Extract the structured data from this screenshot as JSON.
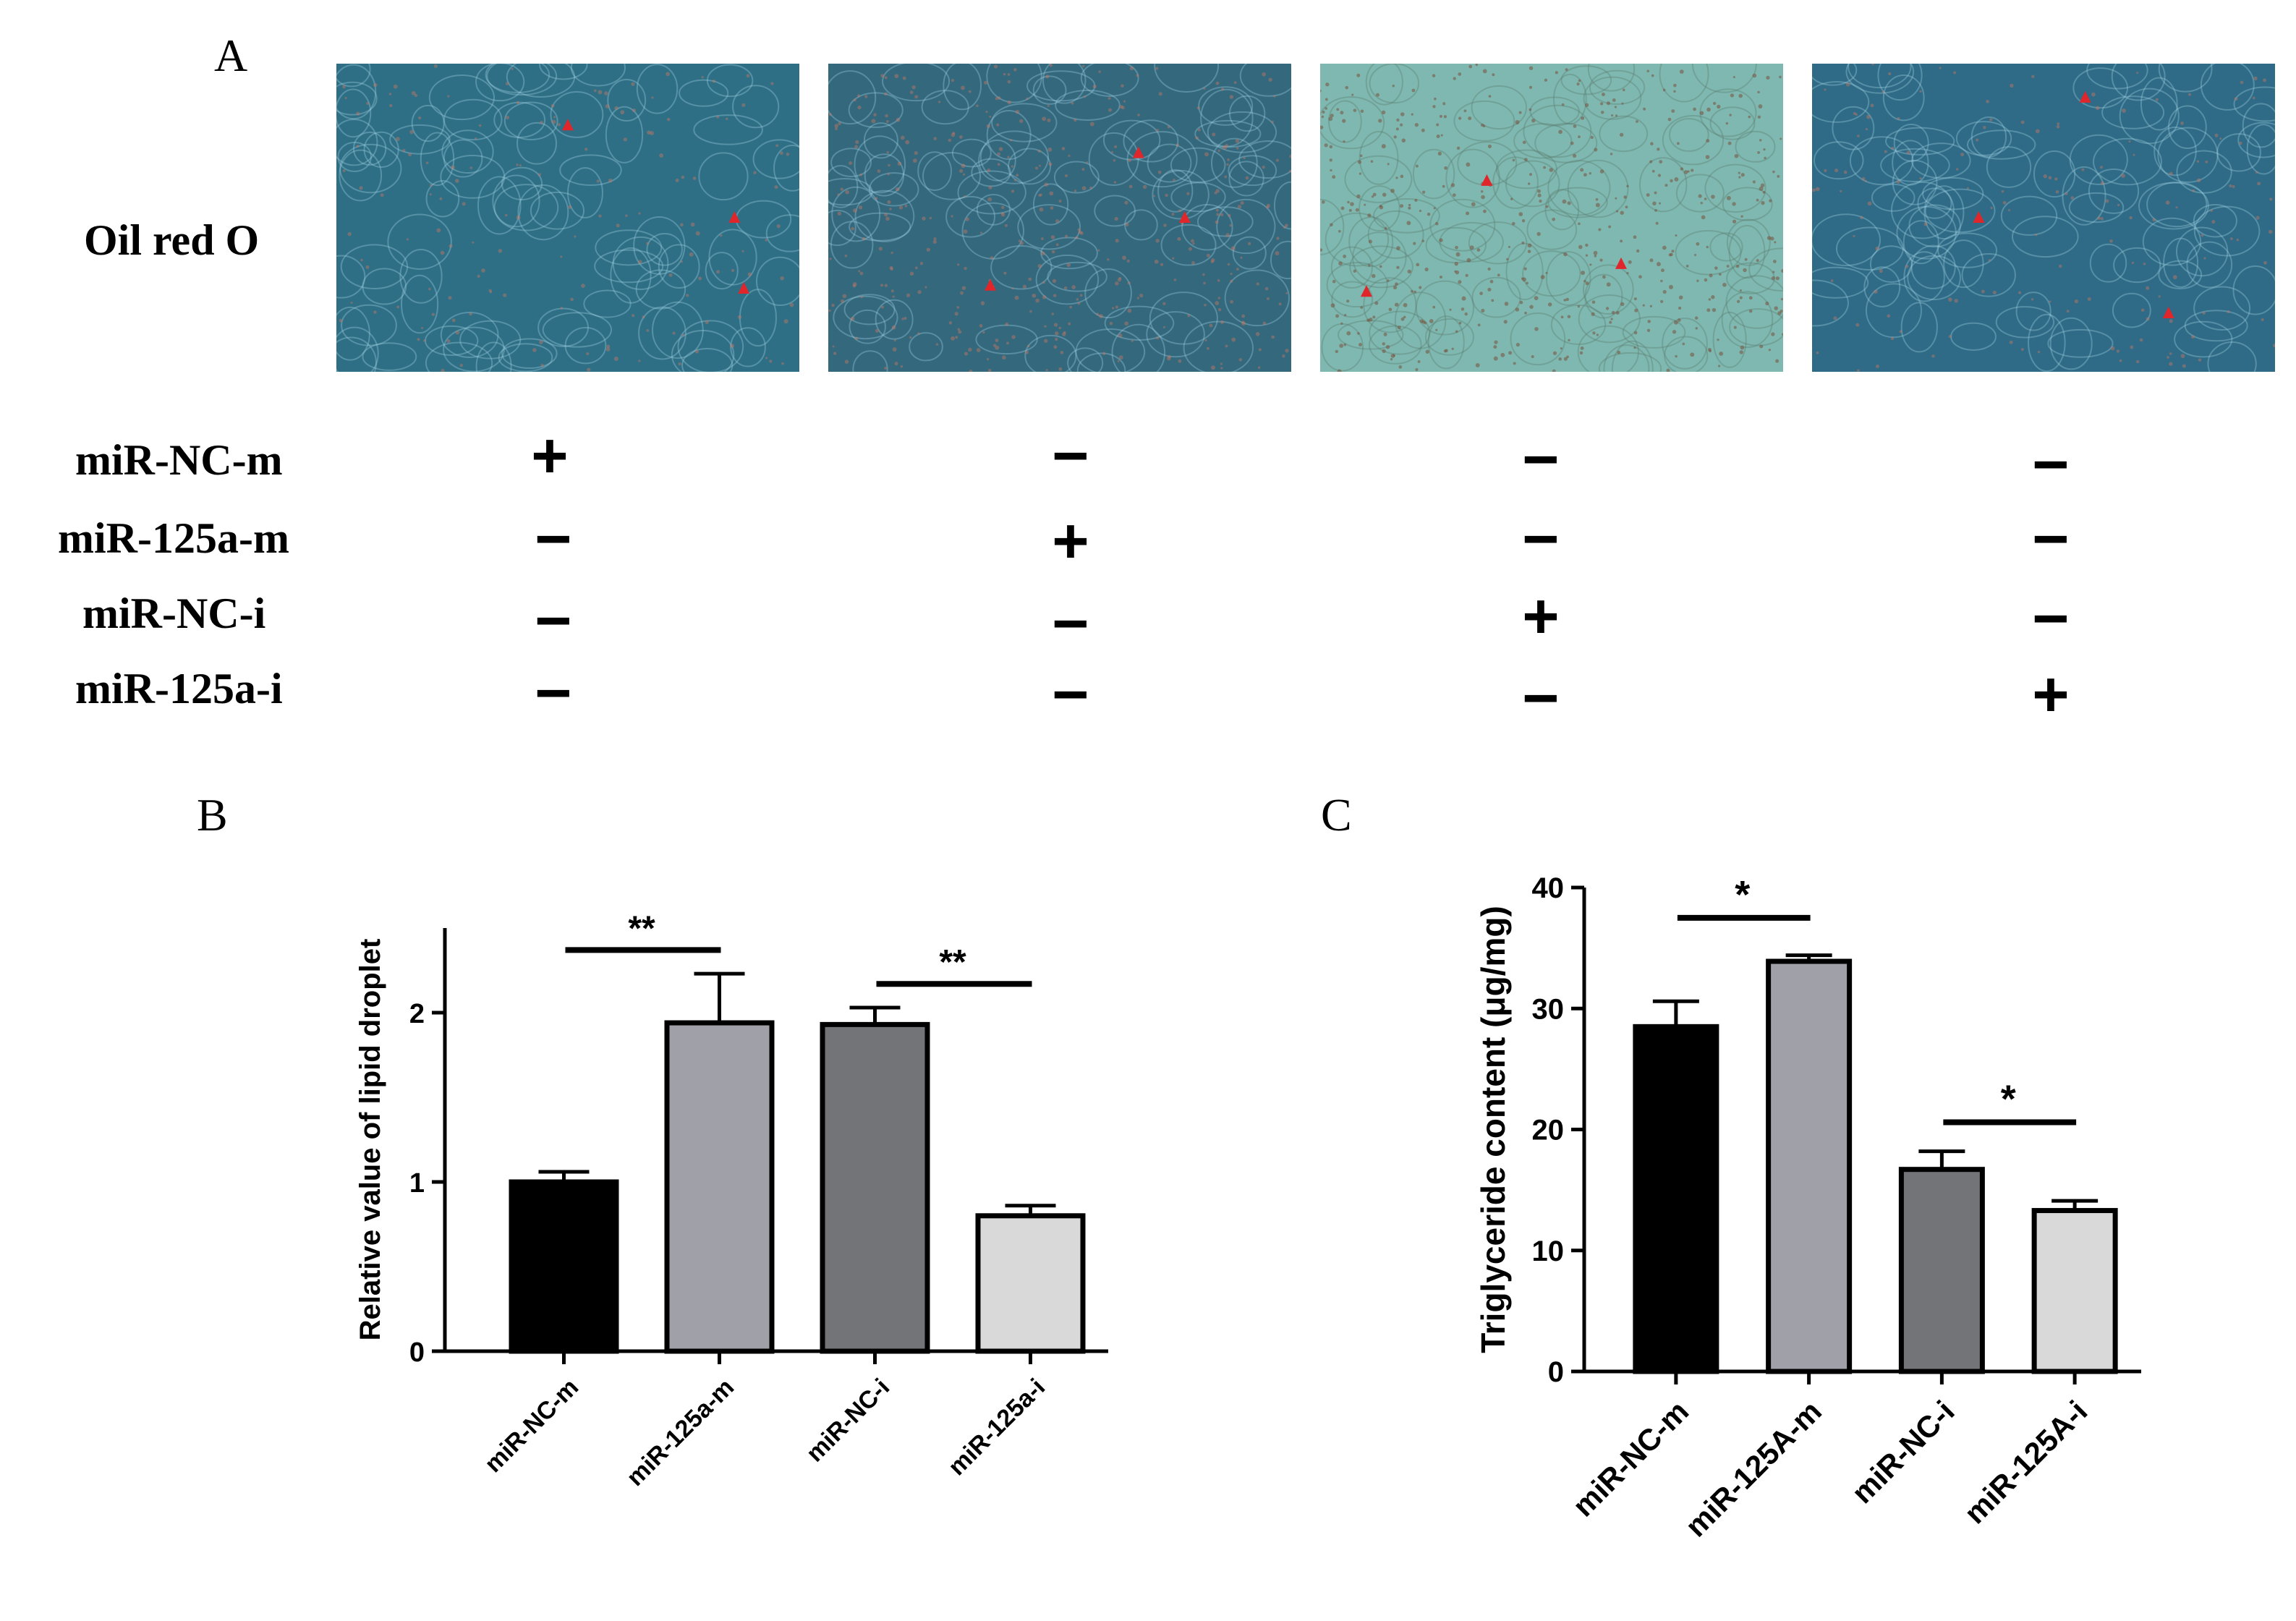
{
  "panel_a": {
    "letter": "A",
    "stain_label": "Oil red O",
    "images": [
      {
        "name": "micrograph-nc-m",
        "tint": "#2f6f86",
        "markers": [
          [
            0.5,
            0.2
          ],
          [
            0.86,
            0.5
          ],
          [
            0.88,
            0.73
          ]
        ]
      },
      {
        "name": "micrograph-125a-m",
        "tint": "#33687d",
        "markers": [
          [
            0.67,
            0.29
          ],
          [
            0.77,
            0.5
          ],
          [
            0.35,
            0.72
          ]
        ]
      },
      {
        "name": "micrograph-nc-i",
        "tint": "#7fb8b0",
        "markers": [
          [
            0.36,
            0.38
          ],
          [
            0.65,
            0.65
          ],
          [
            0.1,
            0.74
          ]
        ]
      },
      {
        "name": "micrograph-125a-i",
        "tint": "#2f6b86",
        "markers": [
          [
            0.59,
            0.11
          ],
          [
            0.36,
            0.5
          ],
          [
            0.77,
            0.81
          ]
        ]
      }
    ],
    "conditions": [
      {
        "label": "miR-NC-m",
        "signs": [
          "+",
          "−",
          "−",
          "−"
        ]
      },
      {
        "label": "miR-125a-m",
        "signs": [
          "−",
          "+",
          "−",
          "−"
        ]
      },
      {
        "label": "miR-NC-i",
        "signs": [
          "−",
          "−",
          "+",
          "−"
        ]
      },
      {
        "label": "miR-125a-i",
        "signs": [
          "−",
          "−",
          "−",
          "+"
        ]
      }
    ]
  },
  "panel_b": {
    "letter": "B"
  },
  "panel_c": {
    "letter": "C"
  },
  "chart_data": [
    {
      "type": "bar",
      "panel": "B",
      "categories": [
        "miR-NC-m",
        "miR-125a-m",
        "miR-NC-i",
        "miR-125a-i"
      ],
      "values": [
        1.0,
        1.94,
        1.93,
        0.8
      ],
      "errors": [
        0.06,
        0.29,
        0.1,
        0.06
      ],
      "colors": [
        "#000000",
        "#a0a0a8",
        "#737478",
        "#d9d9d9"
      ],
      "ylabel": "Relative value of lipid droplet",
      "xlabel": "",
      "ylim": [
        0,
        2.5
      ],
      "yticks": [
        0,
        1,
        2
      ],
      "significance": [
        {
          "from": 0,
          "to": 1,
          "label": "**"
        },
        {
          "from": 2,
          "to": 3,
          "label": "**"
        }
      ]
    },
    {
      "type": "bar",
      "panel": "C",
      "categories": [
        "miR-NC-m",
        "miR-125A-m",
        "miR-NC-i",
        "miR-125A-i"
      ],
      "values": [
        28.5,
        33.9,
        16.7,
        13.3
      ],
      "errors": [
        2.1,
        0.5,
        1.5,
        0.8
      ],
      "colors": [
        "#000000",
        "#a0a0a8",
        "#737478",
        "#d9d9d9"
      ],
      "ylabel": "Triglyceride content (μg/mg)",
      "xlabel": "",
      "ylim": [
        0,
        40
      ],
      "yticks": [
        0,
        10,
        20,
        30,
        40
      ],
      "significance": [
        {
          "from": 0,
          "to": 1,
          "label": "*"
        },
        {
          "from": 2,
          "to": 3,
          "label": "*"
        }
      ]
    }
  ]
}
